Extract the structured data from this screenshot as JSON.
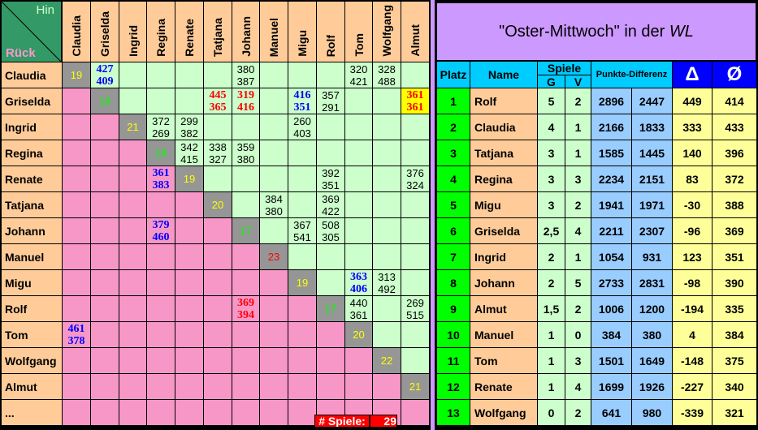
{
  "corner": {
    "hin": "Hin",
    "rueck": "Rück"
  },
  "players": [
    "Claudia",
    "Griselda",
    "Ingrid",
    "Regina",
    "Renate",
    "Tatjana",
    "Johann",
    "Manuel",
    "Migu",
    "Rolf",
    "Tom",
    "Wolfgang",
    "Almut"
  ],
  "extra_row_label": "...",
  "diagonal": [
    {
      "value": "19",
      "color": "#ffff00"
    },
    {
      "value": "18",
      "color": "#00ff00"
    },
    {
      "value": "21",
      "color": "#ffff00"
    },
    {
      "value": "18",
      "color": "#00ff00"
    },
    {
      "value": "19",
      "color": "#ffff00"
    },
    {
      "value": "20",
      "color": "#ffff00"
    },
    {
      "value": "17",
      "color": "#00ff00"
    },
    {
      "value": "23",
      "color": "#ff0000"
    },
    {
      "value": "19",
      "color": "#ffff00"
    },
    {
      "value": "17",
      "color": "#00ff00"
    },
    {
      "value": "20",
      "color": "#ffff00"
    },
    {
      "value": "22",
      "color": "#ffff00"
    },
    {
      "value": "21",
      "color": "#ffff00"
    }
  ],
  "results": [
    {
      "row": "Claudia",
      "col": "Griselda",
      "hin": "427",
      "rueck": "409",
      "style": "blue"
    },
    {
      "row": "Claudia",
      "col": "Johann",
      "hin": "380",
      "rueck": "387",
      "style": "black"
    },
    {
      "row": "Claudia",
      "col": "Tom",
      "hin": "320",
      "rueck": "421",
      "style": "black"
    },
    {
      "row": "Claudia",
      "col": "Wolfgang",
      "hin": "328",
      "rueck": "488",
      "style": "black"
    },
    {
      "row": "Griselda",
      "col": "Tatjana",
      "hin": "445",
      "rueck": "365",
      "style": "red"
    },
    {
      "row": "Griselda",
      "col": "Johann",
      "hin": "319",
      "rueck": "416",
      "style": "red"
    },
    {
      "row": "Griselda",
      "col": "Migu",
      "hin": "416",
      "rueck": "351",
      "style": "blue"
    },
    {
      "row": "Griselda",
      "col": "Rolf",
      "hin": "357",
      "rueck": "291",
      "style": "black"
    },
    {
      "row": "Griselda",
      "col": "Almut",
      "hin": "361",
      "rueck": "361",
      "style": "red-highlight"
    },
    {
      "row": "Ingrid",
      "col": "Regina",
      "hin": "372",
      "rueck": "269",
      "style": "black"
    },
    {
      "row": "Ingrid",
      "col": "Renate",
      "hin": "299",
      "rueck": "382",
      "style": "black"
    },
    {
      "row": "Ingrid",
      "col": "Migu",
      "hin": "260",
      "rueck": "403",
      "style": "black"
    },
    {
      "row": "Regina",
      "col": "Renate",
      "hin": "342",
      "rueck": "415",
      "style": "black"
    },
    {
      "row": "Regina",
      "col": "Tatjana",
      "hin": "338",
      "rueck": "327",
      "style": "black"
    },
    {
      "row": "Regina",
      "col": "Johann",
      "hin": "359",
      "rueck": "380",
      "style": "black"
    },
    {
      "row": "Renate",
      "col": "Regina",
      "hin": "361",
      "rueck": "383",
      "style": "blue"
    },
    {
      "row": "Renate",
      "col": "Rolf",
      "hin": "392",
      "rueck": "351",
      "style": "black"
    },
    {
      "row": "Renate",
      "col": "Almut",
      "hin": "376",
      "rueck": "324",
      "style": "black"
    },
    {
      "row": "Tatjana",
      "col": "Manuel",
      "hin": "384",
      "rueck": "380",
      "style": "black"
    },
    {
      "row": "Tatjana",
      "col": "Rolf",
      "hin": "369",
      "rueck": "422",
      "style": "black"
    },
    {
      "row": "Johann",
      "col": "Regina",
      "hin": "379",
      "rueck": "460",
      "style": "blue"
    },
    {
      "row": "Johann",
      "col": "Migu",
      "hin": "367",
      "rueck": "541",
      "style": "black"
    },
    {
      "row": "Johann",
      "col": "Rolf",
      "hin": "508",
      "rueck": "305",
      "style": "black"
    },
    {
      "row": "Migu",
      "col": "Tom",
      "hin": "363",
      "rueck": "406",
      "style": "blue"
    },
    {
      "row": "Migu",
      "col": "Wolfgang",
      "hin": "313",
      "rueck": "492",
      "style": "black"
    },
    {
      "row": "Rolf",
      "col": "Johann",
      "hin": "369",
      "rueck": "394",
      "style": "red"
    },
    {
      "row": "Rolf",
      "col": "Tom",
      "hin": "440",
      "rueck": "361",
      "style": "black"
    },
    {
      "row": "Rolf",
      "col": "Almut",
      "hin": "269",
      "rueck": "515",
      "style": "black"
    },
    {
      "row": "Tom",
      "col": "Claudia",
      "hin": "461",
      "rueck": "378",
      "style": "blue"
    }
  ],
  "games_count": {
    "label": "# Spiele:",
    "value": "29"
  },
  "standings": {
    "title": "\"Oster-Mittwoch\" in der ",
    "title_italic": "WL",
    "headers": {
      "platz": "Platz",
      "name": "Name",
      "spiele": "Spiele",
      "g": "G",
      "v": "V",
      "punkte": "Punkte-Differenz",
      "delta": "Δ",
      "avg": "Ø"
    },
    "rows": [
      {
        "platz": "1",
        "name": "Rolf",
        "g": "5",
        "v": "2",
        "plus": "2896",
        "minus": "2447",
        "delta": "449",
        "avg": "414"
      },
      {
        "platz": "2",
        "name": "Claudia",
        "g": "4",
        "v": "1",
        "plus": "2166",
        "minus": "1833",
        "delta": "333",
        "avg": "433"
      },
      {
        "platz": "3",
        "name": "Tatjana",
        "g": "3",
        "v": "1",
        "plus": "1585",
        "minus": "1445",
        "delta": "140",
        "avg": "396"
      },
      {
        "platz": "4",
        "name": "Regina",
        "g": "3",
        "v": "3",
        "plus": "2234",
        "minus": "2151",
        "delta": "83",
        "avg": "372"
      },
      {
        "platz": "5",
        "name": "Migu",
        "g": "3",
        "v": "2",
        "plus": "1941",
        "minus": "1971",
        "delta": "-30",
        "avg": "388"
      },
      {
        "platz": "6",
        "name": "Griselda",
        "g": "2,5",
        "v": "4",
        "plus": "2211",
        "minus": "2307",
        "delta": "-96",
        "avg": "369"
      },
      {
        "platz": "7",
        "name": "Ingrid",
        "g": "2",
        "v": "1",
        "plus": "1054",
        "minus": "931",
        "delta": "123",
        "avg": "351"
      },
      {
        "platz": "8",
        "name": "Johann",
        "g": "2",
        "v": "5",
        "plus": "2733",
        "minus": "2831",
        "delta": "-98",
        "avg": "390"
      },
      {
        "platz": "9",
        "name": "Almut",
        "g": "1,5",
        "v": "2",
        "plus": "1006",
        "minus": "1200",
        "delta": "-194",
        "avg": "335"
      },
      {
        "platz": "10",
        "name": "Manuel",
        "g": "1",
        "v": "0",
        "plus": "384",
        "minus": "380",
        "delta": "4",
        "avg": "384"
      },
      {
        "platz": "11",
        "name": "Tom",
        "g": "1",
        "v": "3",
        "plus": "1501",
        "minus": "1649",
        "delta": "-148",
        "avg": "375"
      },
      {
        "platz": "12",
        "name": "Renate",
        "g": "1",
        "v": "4",
        "plus": "1699",
        "minus": "1926",
        "delta": "-227",
        "avg": "340"
      },
      {
        "platz": "13",
        "name": "Wolfgang",
        "g": "0",
        "v": "2",
        "plus": "641",
        "minus": "980",
        "delta": "-339",
        "avg": "321"
      }
    ]
  }
}
